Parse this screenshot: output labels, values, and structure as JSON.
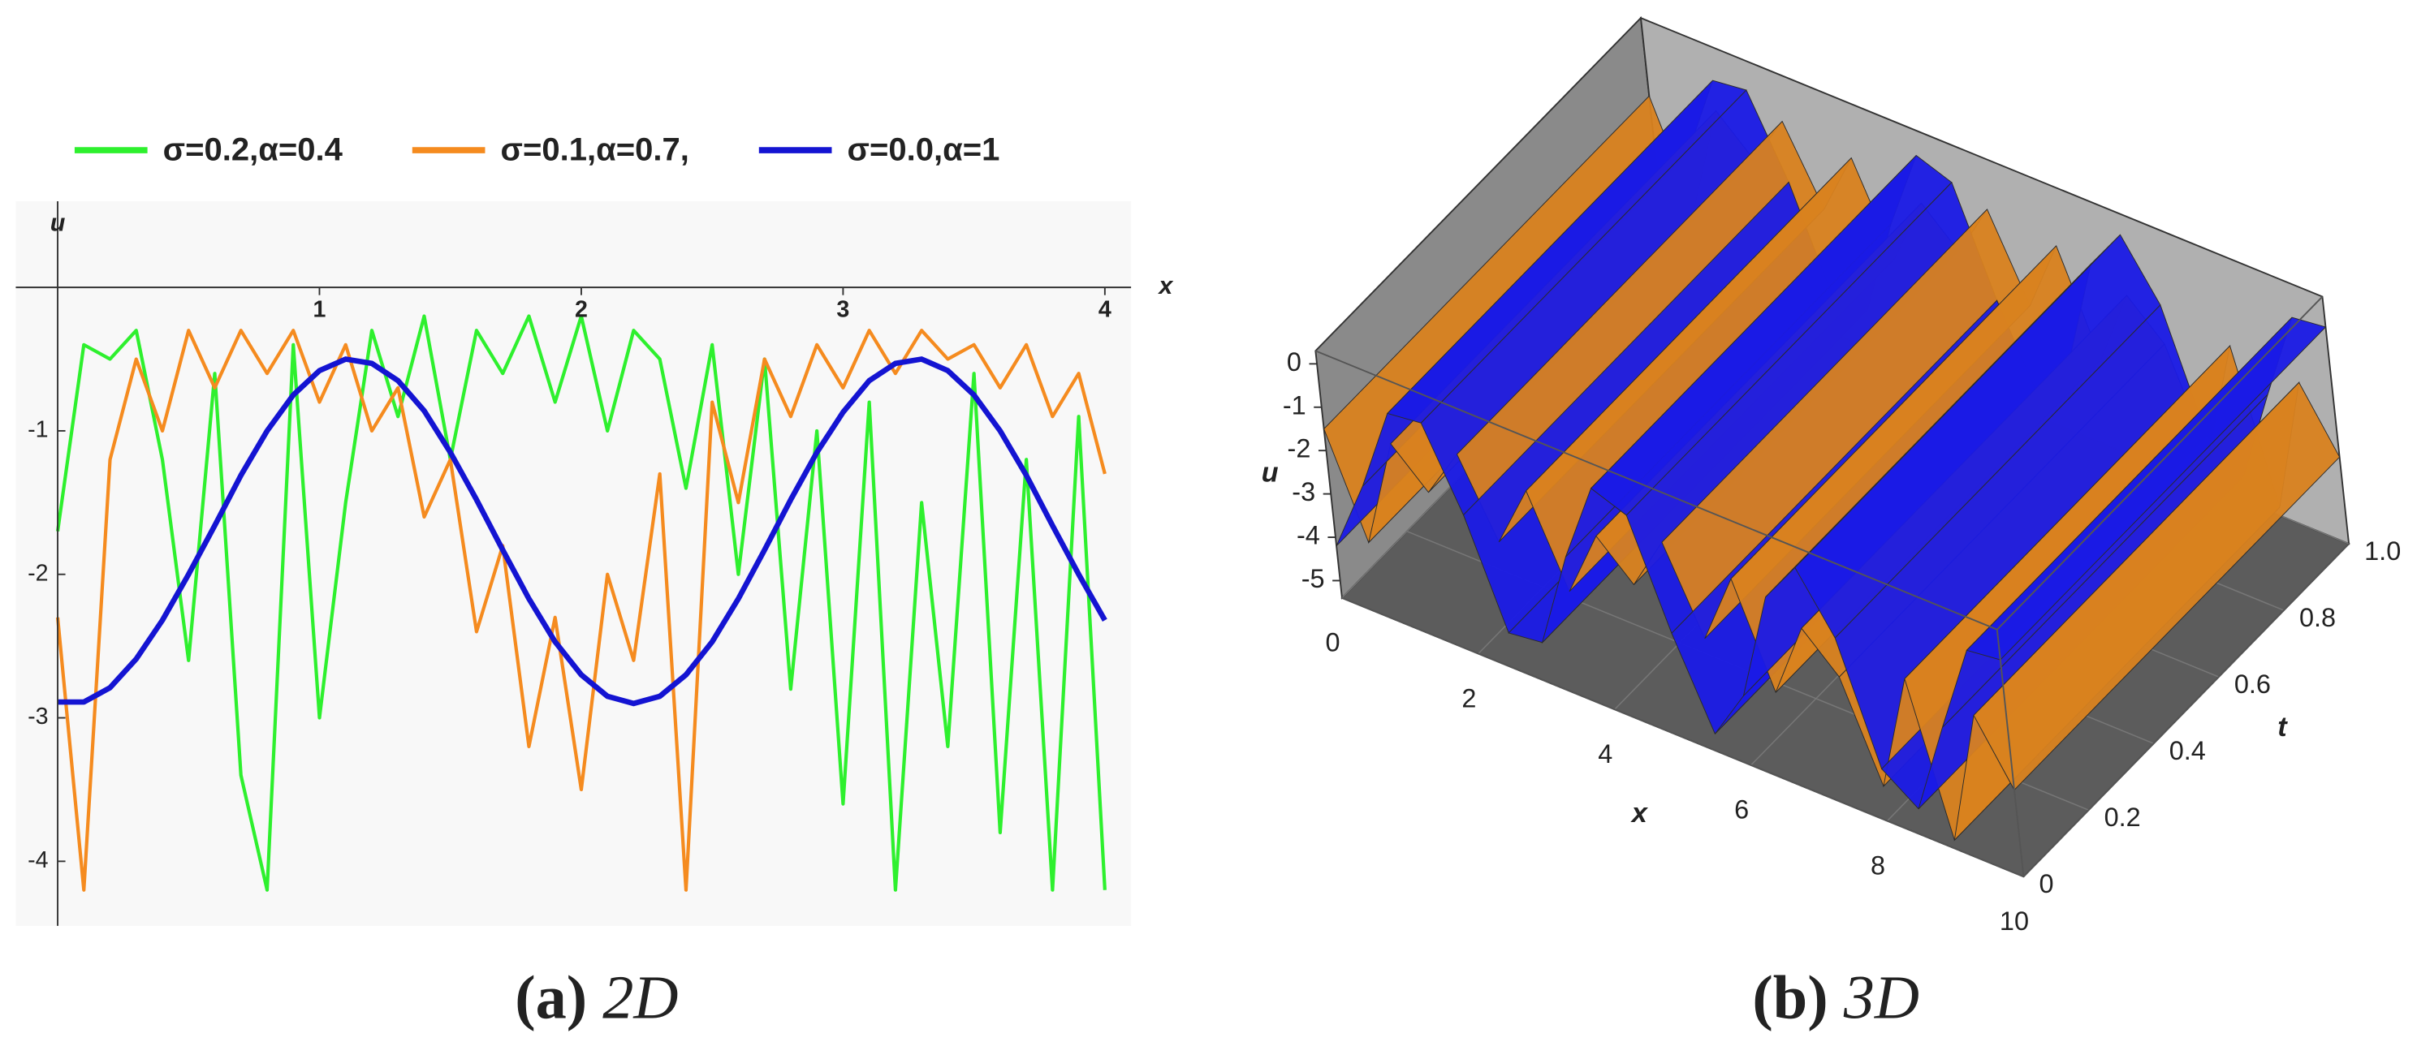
{
  "chart_data": [
    {
      "type": "line",
      "caption": {
        "label": "(a)",
        "text": "2D"
      },
      "xlabel": "x",
      "ylabel": "u",
      "x": [
        0,
        0.1,
        0.2,
        0.3,
        0.4,
        0.5,
        0.6,
        0.7,
        0.8,
        0.9,
        1,
        1.1,
        1.2,
        1.3,
        1.4,
        1.5,
        1.6,
        1.7,
        1.8,
        1.9,
        2,
        2.1,
        2.2,
        2.3,
        2.4,
        2.5,
        2.6,
        2.7,
        2.8,
        2.9,
        3,
        3.1,
        3.2,
        3.3,
        3.4,
        3.5,
        3.6,
        3.7,
        3.8,
        3.9,
        4
      ],
      "series": [
        {
          "name": "σ=0.2,α=0.4",
          "color": "#2ef02e",
          "values": [
            -1.7,
            -0.4,
            -0.5,
            -0.3,
            -1.2,
            -2.6,
            -0.6,
            -3.4,
            -4.2,
            -0.4,
            -3.0,
            -1.5,
            -0.3,
            -0.9,
            -0.2,
            -1.2,
            -0.3,
            -0.6,
            -0.2,
            -0.8,
            -0.2,
            -1.0,
            -0.3,
            -0.5,
            -1.4,
            -0.4,
            -2.0,
            -0.5,
            -2.8,
            -1.0,
            -3.6,
            -0.8,
            -4.2,
            -1.5,
            -3.2,
            -0.6,
            -3.8,
            -1.2,
            -4.2,
            -0.9,
            -4.2
          ]
        },
        {
          "name": "σ=0.1,α=0.7,",
          "color": "#f58b1f",
          "values": [
            -2.3,
            -4.2,
            -1.2,
            -0.5,
            -1.0,
            -0.3,
            -0.7,
            -0.3,
            -0.6,
            -0.3,
            -0.8,
            -0.4,
            -1.0,
            -0.7,
            -1.6,
            -1.2,
            -2.4,
            -1.8,
            -3.2,
            -2.3,
            -3.5,
            -2.0,
            -2.6,
            -1.3,
            -4.2,
            -0.8,
            -1.5,
            -0.5,
            -0.9,
            -0.4,
            -0.7,
            -0.3,
            -0.6,
            -0.3,
            -0.5,
            -0.4,
            -0.7,
            -0.4,
            -0.9,
            -0.6,
            -1.3
          ]
        },
        {
          "name": "σ=0.0,α=1",
          "color": "#1414d2",
          "values": [
            -2.89,
            -2.89,
            -2.79,
            -2.59,
            -2.32,
            -2.0,
            -1.66,
            -1.31,
            -1.0,
            -0.75,
            -0.58,
            -0.5,
            -0.53,
            -0.65,
            -0.86,
            -1.15,
            -1.48,
            -1.83,
            -2.17,
            -2.47,
            -2.7,
            -2.85,
            -2.9,
            -2.85,
            -2.7,
            -2.47,
            -2.17,
            -1.83,
            -1.48,
            -1.15,
            -0.87,
            -0.65,
            -0.53,
            -0.5,
            -0.58,
            -0.75,
            -1.0,
            -1.31,
            -1.66,
            -2.0,
            -2.32
          ]
        }
      ],
      "xlim": [
        -0.16,
        4.1
      ],
      "xticks": [
        1,
        2,
        3,
        4
      ],
      "ylim": [
        -4.45,
        0.6
      ],
      "yticks": [
        -1,
        -2,
        -3,
        -4
      ],
      "legend": "top"
    },
    {
      "type": "surface3d",
      "caption": {
        "label": "(b)",
        "text": "3D"
      },
      "xlabel": "x",
      "ylabel": "t",
      "zlabel": "u",
      "x": [
        0,
        0.5,
        1,
        1.5,
        2,
        2.5,
        3,
        3.5,
        4,
        4.5,
        5,
        5.5,
        6,
        6.5,
        7,
        7.5,
        8,
        8.5,
        9,
        9.5,
        10
      ],
      "series": [
        {
          "color": "#d9821f",
          "values": [
            -1.5,
            -3.8,
            -1.2,
            -2.0,
            -0.8,
            -2.5,
            -1.0,
            -3.0,
            -1.4,
            -2.2,
            -0.9,
            -2.8,
            -1.1,
            -3.4,
            -1.6,
            -2.4,
            -4.6,
            -1.8,
            -5.2,
            -2.0,
            -3.4
          ]
        },
        {
          "color": "#1a1ae6",
          "values": [
            -4.2,
            -2.5,
            -0.5,
            -0.4,
            -2.2,
            -4.6,
            -4.5,
            -2.2,
            -0.3,
            -0.6,
            -3.0,
            -5.0,
            -3.8,
            -1.2,
            -0.2,
            -1.5,
            -4.2,
            -4.8,
            -2.6,
            -0.5,
            -0.4
          ]
        }
      ],
      "xlim": [
        0,
        10
      ],
      "xticks": [
        0,
        2,
        4,
        6,
        8,
        10
      ],
      "ylim": [
        0,
        1
      ],
      "yticks": [
        0,
        0.2,
        0.4,
        0.6,
        0.8,
        {
          "value": 1,
          "label": "1.0"
        }
      ],
      "zlim": [
        -5.4,
        0.3
      ],
      "zticks": [
        0,
        -1,
        -2,
        -3,
        -4,
        -5
      ]
    }
  ]
}
